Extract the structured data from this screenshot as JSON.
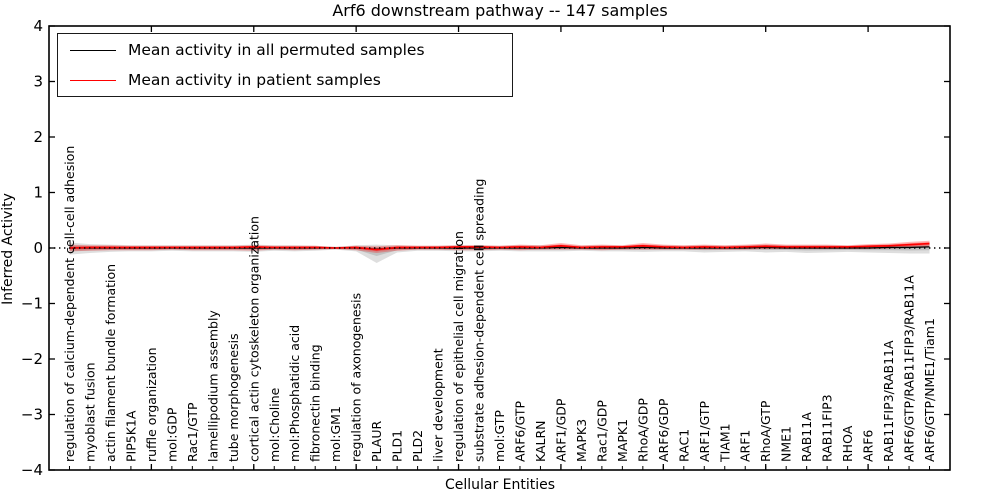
{
  "figure": {
    "background": "#ffffff"
  },
  "chart_data": {
    "type": "line",
    "title": "Arf6 downstream pathway -- 147 samples",
    "xlabel": "Cellular Entities",
    "ylabel": "Inferred Activity",
    "ylim": [
      -4,
      4
    ],
    "yticks": [
      4,
      3,
      2,
      1,
      0,
      -1,
      -2,
      -3,
      -4
    ],
    "yticklabels": [
      "4",
      "3",
      "2",
      "1",
      "0",
      "−1",
      "−2",
      "−3",
      "−4"
    ],
    "xlim": [
      0,
      44
    ],
    "xtick_positions": [
      5,
      10,
      15,
      20,
      25,
      30,
      35,
      40
    ],
    "grid": false,
    "legend_position": "upper left",
    "zero_line": {
      "style": "dotted",
      "color": "#000000"
    },
    "categories": [
      "regulation of calcium-dependent cell-cell adhesion",
      "myoblast fusion",
      "actin filament bundle formation",
      "PIP5K1A",
      "ruffle organization",
      "mol:GDP",
      "Rac1/GTP",
      "lamellipodium assembly",
      "tube morphogenesis",
      "cortical actin cytoskeleton organization",
      "mol:Choline",
      "mol:Phosphatidic acid",
      "fibronectin binding",
      "mol:GM1",
      "regulation of axonogenesis",
      "PLAUR",
      "PLD1",
      "PLD2",
      "liver development",
      "regulation of epithelial cell migration",
      "substrate adhesion-dependent cell spreading",
      "mol:GTP",
      "ARF6/GTP",
      "KALRN",
      "ARF1/GDP",
      "MAPK3",
      "Rac1/GDP",
      "MAPK1",
      "RhoA/GDP",
      "ARF6/GDP",
      "RAC1",
      "ARF1/GTP",
      "TIAM1",
      "ARF1",
      "RhoA/GTP",
      "NME1",
      "RAB11A",
      "RAB11FIP3",
      "RHOA",
      "ARF6",
      "RAB11FIP3/RAB11A",
      "ARF6/GTP/RAB11FIP3/RAB11A",
      "ARF6/GTP/NME1/Tiam1"
    ],
    "series": [
      {
        "name": "Mean activity in all permuted samples",
        "color": "#000000",
        "band_alpha": 0.13,
        "values": [
          0.0,
          0.0,
          0.0,
          0.0,
          0.0,
          0.0,
          0.0,
          0.0,
          0.0,
          0.0,
          0.0,
          0.0,
          0.0,
          0.0,
          0.0,
          -0.02,
          0.0,
          0.0,
          0.0,
          0.0,
          0.0,
          0.0,
          0.0,
          0.0,
          0.01,
          0.0,
          0.0,
          0.0,
          0.01,
          0.0,
          0.0,
          0.0,
          0.0,
          0.0,
          0.01,
          0.0,
          0.0,
          0.0,
          0.0,
          0.0,
          0.01,
          0.01,
          0.02
        ],
        "band_hi": [
          0.1,
          0.07,
          0.06,
          0.05,
          0.05,
          0.05,
          0.05,
          0.05,
          0.05,
          0.06,
          0.05,
          0.05,
          0.04,
          0.02,
          0.05,
          0.06,
          0.05,
          0.04,
          0.04,
          0.05,
          0.05,
          0.04,
          0.05,
          0.05,
          0.05,
          0.04,
          0.05,
          0.04,
          0.05,
          0.05,
          0.04,
          0.05,
          0.04,
          0.05,
          0.06,
          0.05,
          0.05,
          0.05,
          0.04,
          0.05,
          0.06,
          0.07,
          0.08
        ],
        "band_lo": [
          -0.12,
          -0.09,
          -0.07,
          -0.06,
          -0.06,
          -0.05,
          -0.06,
          -0.06,
          -0.06,
          -0.07,
          -0.05,
          -0.06,
          -0.05,
          -0.03,
          -0.06,
          -0.27,
          -0.08,
          -0.05,
          -0.05,
          -0.06,
          -0.06,
          -0.05,
          -0.06,
          -0.06,
          -0.06,
          -0.05,
          -0.06,
          -0.06,
          -0.07,
          -0.06,
          -0.06,
          -0.08,
          -0.07,
          -0.06,
          -0.08,
          -0.07,
          -0.09,
          -0.08,
          -0.07,
          -0.08,
          -0.09,
          -0.1,
          -0.1
        ]
      },
      {
        "name": "Mean activity in patient samples",
        "color": "#ff0000",
        "band_alpha": 0.28,
        "values": [
          0.0,
          0.01,
          0.01,
          0.01,
          0.01,
          0.01,
          0.01,
          0.01,
          0.01,
          0.02,
          0.01,
          0.01,
          0.01,
          0.0,
          0.01,
          -0.03,
          0.01,
          0.01,
          0.01,
          0.02,
          0.02,
          0.01,
          0.02,
          0.01,
          0.04,
          0.01,
          0.02,
          0.02,
          0.04,
          0.02,
          0.01,
          0.02,
          0.01,
          0.02,
          0.03,
          0.02,
          0.02,
          0.02,
          0.02,
          0.03,
          0.04,
          0.06,
          0.08
        ],
        "band_hi": [
          0.06,
          0.05,
          0.05,
          0.04,
          0.04,
          0.04,
          0.04,
          0.04,
          0.04,
          0.05,
          0.04,
          0.04,
          0.04,
          0.02,
          0.04,
          0.03,
          0.05,
          0.04,
          0.04,
          0.05,
          0.05,
          0.04,
          0.06,
          0.05,
          0.09,
          0.05,
          0.06,
          0.05,
          0.09,
          0.06,
          0.05,
          0.06,
          0.05,
          0.06,
          0.08,
          0.06,
          0.06,
          0.06,
          0.05,
          0.07,
          0.08,
          0.11,
          0.13
        ],
        "band_lo": [
          -0.06,
          -0.05,
          -0.04,
          -0.04,
          -0.04,
          -0.03,
          -0.04,
          -0.04,
          -0.04,
          -0.05,
          -0.03,
          -0.04,
          -0.03,
          -0.02,
          -0.04,
          -0.09,
          -0.05,
          -0.03,
          -0.03,
          -0.04,
          -0.04,
          -0.03,
          -0.04,
          -0.03,
          -0.03,
          -0.03,
          -0.04,
          -0.03,
          -0.03,
          -0.03,
          -0.03,
          -0.03,
          -0.03,
          -0.03,
          -0.02,
          -0.02,
          -0.02,
          -0.02,
          -0.02,
          -0.02,
          -0.01,
          0.0,
          0.03
        ]
      }
    ]
  }
}
